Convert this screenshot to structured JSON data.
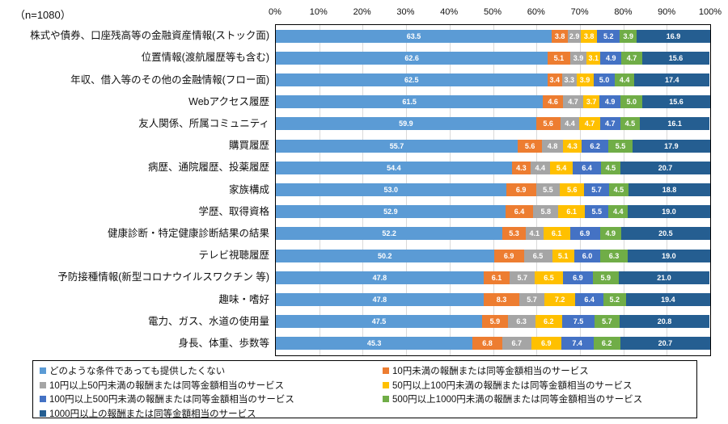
{
  "chart_data": {
    "type": "bar",
    "stacked": true,
    "orientation": "horizontal",
    "n_label": "（n=1080）",
    "title": "",
    "xlabel": "",
    "ylabel": "",
    "xlim": [
      0,
      100
    ],
    "x_tick_labels": [
      "0%",
      "10%",
      "20%",
      "30%",
      "40%",
      "50%",
      "60%",
      "70%",
      "80%",
      "90%",
      "100%"
    ],
    "grid": true,
    "legend_position": "bottom",
    "value_label_format": "percent-one-decimal",
    "categories": [
      "株式や債券、口座残高等の金融資産情報(ストック面)",
      "位置情報(渡航履歴等も含む)",
      "年収、借入等のその他の金融情報(フロー面)",
      "Webアクセス履歴",
      "友人関係、所属コミュニティ",
      "購買履歴",
      "病歴、通院履歴、投薬履歴",
      "家族構成",
      "学歴、取得資格",
      "健康診断・特定健康診断結果の結果",
      "テレビ視聴履歴",
      "予防接種情報(新型コロナウイルスワクチン 等)",
      "趣味・嗜好",
      "電力、ガス、水道の使用量",
      "身長、体重、歩数等"
    ],
    "series": [
      {
        "name": "どのような条件であっても提供したくない",
        "color": "#5B9BD5",
        "values": [
          63.5,
          62.6,
          62.5,
          61.5,
          59.9,
          55.7,
          54.4,
          53.0,
          52.9,
          52.2,
          50.2,
          47.8,
          47.8,
          47.5,
          45.3
        ]
      },
      {
        "name": "10円未満の報酬または同等金額相当のサービス",
        "color": "#ED7D31",
        "values": [
          3.8,
          5.1,
          3.4,
          4.6,
          5.6,
          5.6,
          4.3,
          6.9,
          6.4,
          5.3,
          6.9,
          6.1,
          8.3,
          5.9,
          6.8
        ]
      },
      {
        "name": "10円以上50円未満の報酬または同等金額相当のサービス",
        "color": "#A5A5A5",
        "values": [
          2.9,
          3.9,
          3.3,
          4.7,
          4.4,
          4.8,
          4.4,
          5.5,
          5.8,
          4.1,
          6.5,
          5.7,
          5.7,
          6.3,
          6.7
        ]
      },
      {
        "name": "50円以上100円未満の報酬または同等金額相当のサービス",
        "color": "#FFC000",
        "values": [
          3.8,
          3.1,
          3.9,
          3.7,
          4.7,
          4.3,
          5.4,
          5.6,
          6.1,
          6.1,
          5.1,
          6.5,
          7.2,
          6.2,
          6.9
        ]
      },
      {
        "name": "100円以上500円未満の報酬または同等金額相当のサービス",
        "color": "#4472C4",
        "values": [
          5.2,
          4.9,
          5.0,
          4.9,
          4.7,
          6.2,
          6.4,
          5.7,
          5.5,
          6.9,
          6.0,
          6.9,
          6.4,
          7.5,
          7.4
        ]
      },
      {
        "name": "500円以上1000円未満の報酬または同等金額相当のサービス",
        "color": "#70AD47",
        "values": [
          3.9,
          4.7,
          4.4,
          5.0,
          4.5,
          5.5,
          4.5,
          4.5,
          4.4,
          4.9,
          6.3,
          5.9,
          5.2,
          5.7,
          6.2
        ]
      },
      {
        "name": "1000円以上の報酬または同等金額相当のサービス",
        "color": "#255E91",
        "values": [
          16.9,
          15.6,
          17.4,
          15.6,
          16.1,
          17.9,
          20.7,
          18.8,
          19.0,
          20.5,
          19.0,
          21.0,
          19.4,
          20.8,
          20.7
        ]
      }
    ]
  }
}
